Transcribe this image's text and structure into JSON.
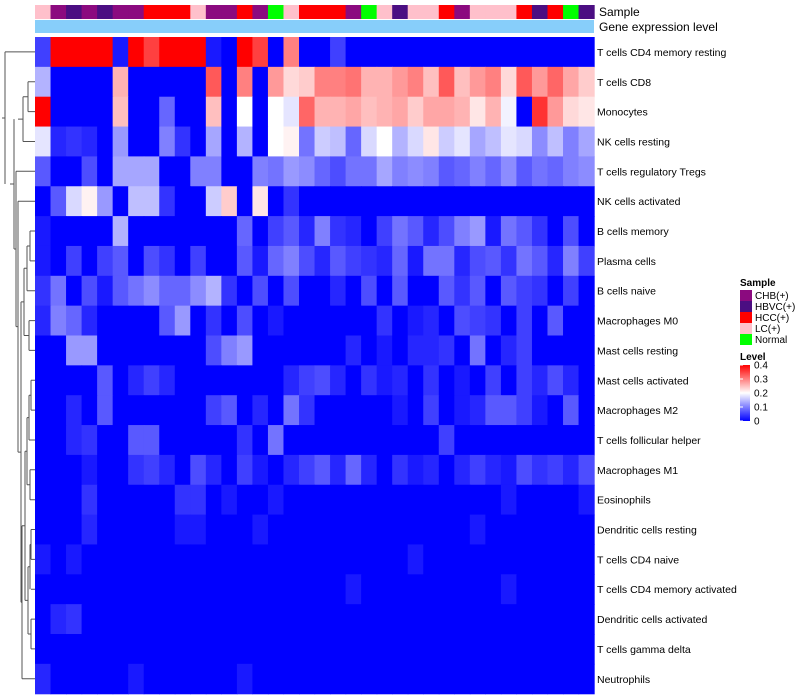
{
  "chart_data": {
    "type": "heatmap",
    "title": "",
    "columns": 36,
    "sample_annotation_label": "Sample",
    "expression_annotation_label": "Gene expression level",
    "rows": [
      "T cells CD4 memory resting",
      "T cells CD8",
      "Monocytes",
      "NK cells resting",
      "T cells regulatory  Tregs",
      "NK cells activated",
      "B cells memory",
      "Plasma cells",
      "B cells naive",
      "Macrophages M0",
      "Mast cells resting",
      "Mast cells activated",
      "Macrophages M2",
      "T cells follicular helper",
      "Macrophages M1",
      "Eosinophils",
      "Dendritic cells resting",
      "T cells CD4 naive",
      "T cells CD4 memory activated",
      "Dendritic cells activated",
      "T cells gamma delta",
      "Neutrophils"
    ],
    "sample_groups": [
      "CHB(+)",
      "HBVC(+)",
      "HCC(+)",
      "LC(+)",
      "Normal"
    ],
    "sample_colors": {
      "CHB(+)": "#8b0a7f",
      "HBVC(+)": "#4b0e82",
      "HCC(+)": "#ff0000",
      "LC(+)": "#ffc0cb",
      "Normal": "#00ff00"
    },
    "sample_annotation": [
      "LC(+)",
      "CHB(+)",
      "HBVC(+)",
      "CHB(+)",
      "HBVC(+)",
      "CHB(+)",
      "CHB(+)",
      "HCC(+)",
      "HCC(+)",
      "HCC(+)",
      "LC(+)",
      "CHB(+)",
      "CHB(+)",
      "HCC(+)",
      "CHB(+)",
      "Normal",
      "LC(+)",
      "HCC(+)",
      "HCC(+)",
      "HCC(+)",
      "CHB(+)",
      "Normal",
      "LC(+)",
      "HBVC(+)",
      "LC(+)",
      "LC(+)",
      "HCC(+)",
      "CHB(+)",
      "LC(+)",
      "LC(+)",
      "LC(+)",
      "HCC(+)",
      "HBVC(+)",
      "HCC(+)",
      "Normal",
      "HBVC(+)"
    ],
    "legend": {
      "sample_title": "Sample",
      "level_title": "Level",
      "level_ticks": [
        "0.4",
        "0.3",
        "0.2",
        "0.1",
        "0"
      ],
      "level_tick_values": [
        0.4,
        0.3,
        0.2,
        0.1,
        0
      ],
      "level_range": [
        0,
        0.4
      ],
      "colors": {
        "low": "#0000ff",
        "mid": "#ffffff",
        "high": "#ff0000",
        "mid_value": 0.2
      }
    },
    "values": [
      [
        0.05,
        0.4,
        0.4,
        0.4,
        0.4,
        0.02,
        0.4,
        0.35,
        0.4,
        0.4,
        0.4,
        0.02,
        0.0,
        0.4,
        0.35,
        0.0,
        0.3,
        0.0,
        0.0,
        0.05,
        0.0,
        0.0,
        0.0,
        0.0,
        0.0,
        0.0,
        0.0,
        0.0,
        0.0,
        0.0,
        0.0,
        0.0,
        0.0,
        0.0,
        0.0,
        0.0
      ],
      [
        0.14,
        0.0,
        0.0,
        0.0,
        0.0,
        0.26,
        0.0,
        0.0,
        0.0,
        0.0,
        0.0,
        0.33,
        0.0,
        0.3,
        0.0,
        0.28,
        0.23,
        0.24,
        0.3,
        0.3,
        0.31,
        0.26,
        0.26,
        0.28,
        0.3,
        0.25,
        0.33,
        0.25,
        0.28,
        0.3,
        0.23,
        0.33,
        0.28,
        0.32,
        0.27,
        0.24
      ],
      [
        0.4,
        0.0,
        0.0,
        0.0,
        0.0,
        0.25,
        0.0,
        0.0,
        0.08,
        0.0,
        0.0,
        0.25,
        0.0,
        0.2,
        0.0,
        0.2,
        0.18,
        0.32,
        0.26,
        0.26,
        0.27,
        0.25,
        0.26,
        0.27,
        0.24,
        0.27,
        0.27,
        0.26,
        0.22,
        0.26,
        0.19,
        0.0,
        0.36,
        0.28,
        0.23,
        0.22
      ],
      [
        0.18,
        0.03,
        0.04,
        0.03,
        0.0,
        0.12,
        0.0,
        0.0,
        0.1,
        0.04,
        0.0,
        0.13,
        0.0,
        0.14,
        0.0,
        0.2,
        0.21,
        0.09,
        0.16,
        0.15,
        0.08,
        0.17,
        0.2,
        0.14,
        0.17,
        0.22,
        0.16,
        0.18,
        0.13,
        0.15,
        0.18,
        0.17,
        0.11,
        0.15,
        0.1,
        0.13
      ],
      [
        0.07,
        0.0,
        0.0,
        0.06,
        0.0,
        0.13,
        0.13,
        0.13,
        0.0,
        0.0,
        0.1,
        0.1,
        0.0,
        0.0,
        0.1,
        0.09,
        0.12,
        0.11,
        0.08,
        0.06,
        0.09,
        0.09,
        0.13,
        0.1,
        0.11,
        0.1,
        0.07,
        0.08,
        0.1,
        0.08,
        0.11,
        0.07,
        0.09,
        0.08,
        0.1,
        0.11
      ],
      [
        0.0,
        0.07,
        0.17,
        0.21,
        0.12,
        0.0,
        0.15,
        0.15,
        0.04,
        0.0,
        0.0,
        0.16,
        0.24,
        0.0,
        0.22,
        0.0,
        0.04,
        0.0,
        0.0,
        0.0,
        0.0,
        0.0,
        0.0,
        0.0,
        0.0,
        0.0,
        0.0,
        0.0,
        0.0,
        0.0,
        0.0,
        0.0,
        0.0,
        0.0,
        0.0,
        0.0
      ],
      [
        0.02,
        0.0,
        0.0,
        0.0,
        0.0,
        0.14,
        0.0,
        0.0,
        0.0,
        0.0,
        0.0,
        0.0,
        0.0,
        0.08,
        0.0,
        0.05,
        0.07,
        0.03,
        0.1,
        0.04,
        0.03,
        0.0,
        0.05,
        0.09,
        0.07,
        0.03,
        0.06,
        0.1,
        0.12,
        0.02,
        0.09,
        0.07,
        0.04,
        0.0,
        0.06,
        0.0
      ],
      [
        0.02,
        0.0,
        0.05,
        0.0,
        0.05,
        0.07,
        0.0,
        0.06,
        0.04,
        0.0,
        0.05,
        0.0,
        0.0,
        0.07,
        0.02,
        0.08,
        0.1,
        0.06,
        0.03,
        0.07,
        0.05,
        0.04,
        0.03,
        0.08,
        0.02,
        0.09,
        0.09,
        0.03,
        0.06,
        0.07,
        0.04,
        0.09,
        0.07,
        0.03,
        0.1,
        0.05
      ],
      [
        0.04,
        0.09,
        0.0,
        0.06,
        0.02,
        0.07,
        0.09,
        0.11,
        0.08,
        0.08,
        0.11,
        0.14,
        0.04,
        0.0,
        0.06,
        0.0,
        0.06,
        0.0,
        0.0,
        0.03,
        0.0,
        0.06,
        0.0,
        0.07,
        0.0,
        0.0,
        0.07,
        0.04,
        0.07,
        0.0,
        0.07,
        0.05,
        0.04,
        0.0,
        0.05,
        0.0
      ],
      [
        0.03,
        0.1,
        0.08,
        0.03,
        0.0,
        0.0,
        0.0,
        0.0,
        0.07,
        0.12,
        0.0,
        0.04,
        0.0,
        0.06,
        0.0,
        0.02,
        0.0,
        0.0,
        0.0,
        0.0,
        0.0,
        0.0,
        0.04,
        0.0,
        0.02,
        0.03,
        0.0,
        0.06,
        0.05,
        0.04,
        0.0,
        0.05,
        0.0,
        0.07,
        0.0,
        0.0
      ],
      [
        0.0,
        0.0,
        0.12,
        0.12,
        0.0,
        0.0,
        0.0,
        0.0,
        0.0,
        0.0,
        0.0,
        0.06,
        0.1,
        0.12,
        0.0,
        0.0,
        0.0,
        0.0,
        0.0,
        0.0,
        0.03,
        0.0,
        0.02,
        0.0,
        0.03,
        0.03,
        0.04,
        0.0,
        0.09,
        0.0,
        0.03,
        0.05,
        0.0,
        0.0,
        0.0,
        0.0
      ],
      [
        0.0,
        0.0,
        0.0,
        0.0,
        0.07,
        0.0,
        0.03,
        0.05,
        0.03,
        0.0,
        0.0,
        0.0,
        0.0,
        0.0,
        0.0,
        0.0,
        0.03,
        0.05,
        0.06,
        0.03,
        0.0,
        0.04,
        0.02,
        0.03,
        0.0,
        0.04,
        0.0,
        0.02,
        0.0,
        0.05,
        0.0,
        0.05,
        0.03,
        0.06,
        0.03,
        0.0
      ],
      [
        0.0,
        0.0,
        0.03,
        0.0,
        0.07,
        0.0,
        0.0,
        0.0,
        0.0,
        0.0,
        0.0,
        0.05,
        0.07,
        0.0,
        0.03,
        0.0,
        0.09,
        0.04,
        0.0,
        0.0,
        0.0,
        0.0,
        0.0,
        0.02,
        0.0,
        0.05,
        0.0,
        0.02,
        0.03,
        0.07,
        0.07,
        0.05,
        0.02,
        0.0,
        0.07,
        0.0
      ],
      [
        0.0,
        0.0,
        0.03,
        0.04,
        0.0,
        0.0,
        0.07,
        0.07,
        0.0,
        0.0,
        0.0,
        0.0,
        0.0,
        0.04,
        0.0,
        0.09,
        0.0,
        0.0,
        0.0,
        0.0,
        0.0,
        0.0,
        0.0,
        0.0,
        0.0,
        0.0,
        0.05,
        0.0,
        0.0,
        0.0,
        0.0,
        0.0,
        0.0,
        0.0,
        0.0,
        0.0
      ],
      [
        0.0,
        0.0,
        0.0,
        0.02,
        0.0,
        0.0,
        0.04,
        0.05,
        0.03,
        0.0,
        0.06,
        0.03,
        0.0,
        0.05,
        0.02,
        0.0,
        0.03,
        0.05,
        0.07,
        0.03,
        0.08,
        0.03,
        0.0,
        0.04,
        0.02,
        0.03,
        0.0,
        0.03,
        0.05,
        0.03,
        0.02,
        0.06,
        0.04,
        0.05,
        0.03,
        0.06
      ],
      [
        0.0,
        0.0,
        0.0,
        0.04,
        0.0,
        0.0,
        0.0,
        0.0,
        0.0,
        0.04,
        0.04,
        0.0,
        0.02,
        0.0,
        0.0,
        0.02,
        0.0,
        0.0,
        0.0,
        0.0,
        0.0,
        0.0,
        0.0,
        0.0,
        0.0,
        0.0,
        0.0,
        0.0,
        0.0,
        0.0,
        0.02,
        0.0,
        0.0,
        0.0,
        0.0,
        0.02
      ],
      [
        0.0,
        0.0,
        0.0,
        0.03,
        0.0,
        0.0,
        0.0,
        0.0,
        0.0,
        0.02,
        0.02,
        0.0,
        0.0,
        0.0,
        0.02,
        0.0,
        0.0,
        0.0,
        0.0,
        0.0,
        0.0,
        0.0,
        0.0,
        0.0,
        0.0,
        0.0,
        0.0,
        0.0,
        0.02,
        0.0,
        0.0,
        0.0,
        0.0,
        0.0,
        0.0,
        0.0
      ],
      [
        0.02,
        0.0,
        0.02,
        0.0,
        0.0,
        0.0,
        0.0,
        0.0,
        0.0,
        0.0,
        0.0,
        0.0,
        0.0,
        0.0,
        0.0,
        0.0,
        0.0,
        0.0,
        0.0,
        0.0,
        0.0,
        0.0,
        0.0,
        0.0,
        0.02,
        0.0,
        0.0,
        0.0,
        0.0,
        0.0,
        0.0,
        0.0,
        0.0,
        0.0,
        0.0,
        0.0
      ],
      [
        0.0,
        0.0,
        0.0,
        0.0,
        0.0,
        0.0,
        0.0,
        0.0,
        0.0,
        0.0,
        0.0,
        0.0,
        0.0,
        0.0,
        0.0,
        0.0,
        0.0,
        0.0,
        0.0,
        0.0,
        0.02,
        0.0,
        0.0,
        0.0,
        0.0,
        0.0,
        0.0,
        0.0,
        0.0,
        0.0,
        0.02,
        0.0,
        0.0,
        0.0,
        0.0,
        0.0
      ],
      [
        0.0,
        0.03,
        0.04,
        0.0,
        0.0,
        0.0,
        0.0,
        0.0,
        0.0,
        0.0,
        0.0,
        0.0,
        0.0,
        0.0,
        0.0,
        0.0,
        0.0,
        0.0,
        0.0,
        0.0,
        0.0,
        0.0,
        0.0,
        0.0,
        0.0,
        0.0,
        0.0,
        0.0,
        0.0,
        0.0,
        0.0,
        0.0,
        0.0,
        0.0,
        0.0,
        0.0
      ],
      [
        0.0,
        0.0,
        0.0,
        0.0,
        0.0,
        0.0,
        0.0,
        0.0,
        0.0,
        0.0,
        0.0,
        0.0,
        0.0,
        0.0,
        0.0,
        0.0,
        0.0,
        0.0,
        0.0,
        0.0,
        0.0,
        0.0,
        0.0,
        0.0,
        0.0,
        0.0,
        0.0,
        0.0,
        0.0,
        0.0,
        0.0,
        0.0,
        0.0,
        0.0,
        0.0,
        0.0
      ],
      [
        0.03,
        0.0,
        0.0,
        0.0,
        0.0,
        0.0,
        0.02,
        0.0,
        0.0,
        0.0,
        0.0,
        0.0,
        0.0,
        0.02,
        0.0,
        0.0,
        0.0,
        0.0,
        0.0,
        0.0,
        0.0,
        0.0,
        0.0,
        0.0,
        0.0,
        0.0,
        0.0,
        0.0,
        0.0,
        0.0,
        0.0,
        0.0,
        0.0,
        0.0,
        0.0,
        0.0
      ]
    ]
  }
}
